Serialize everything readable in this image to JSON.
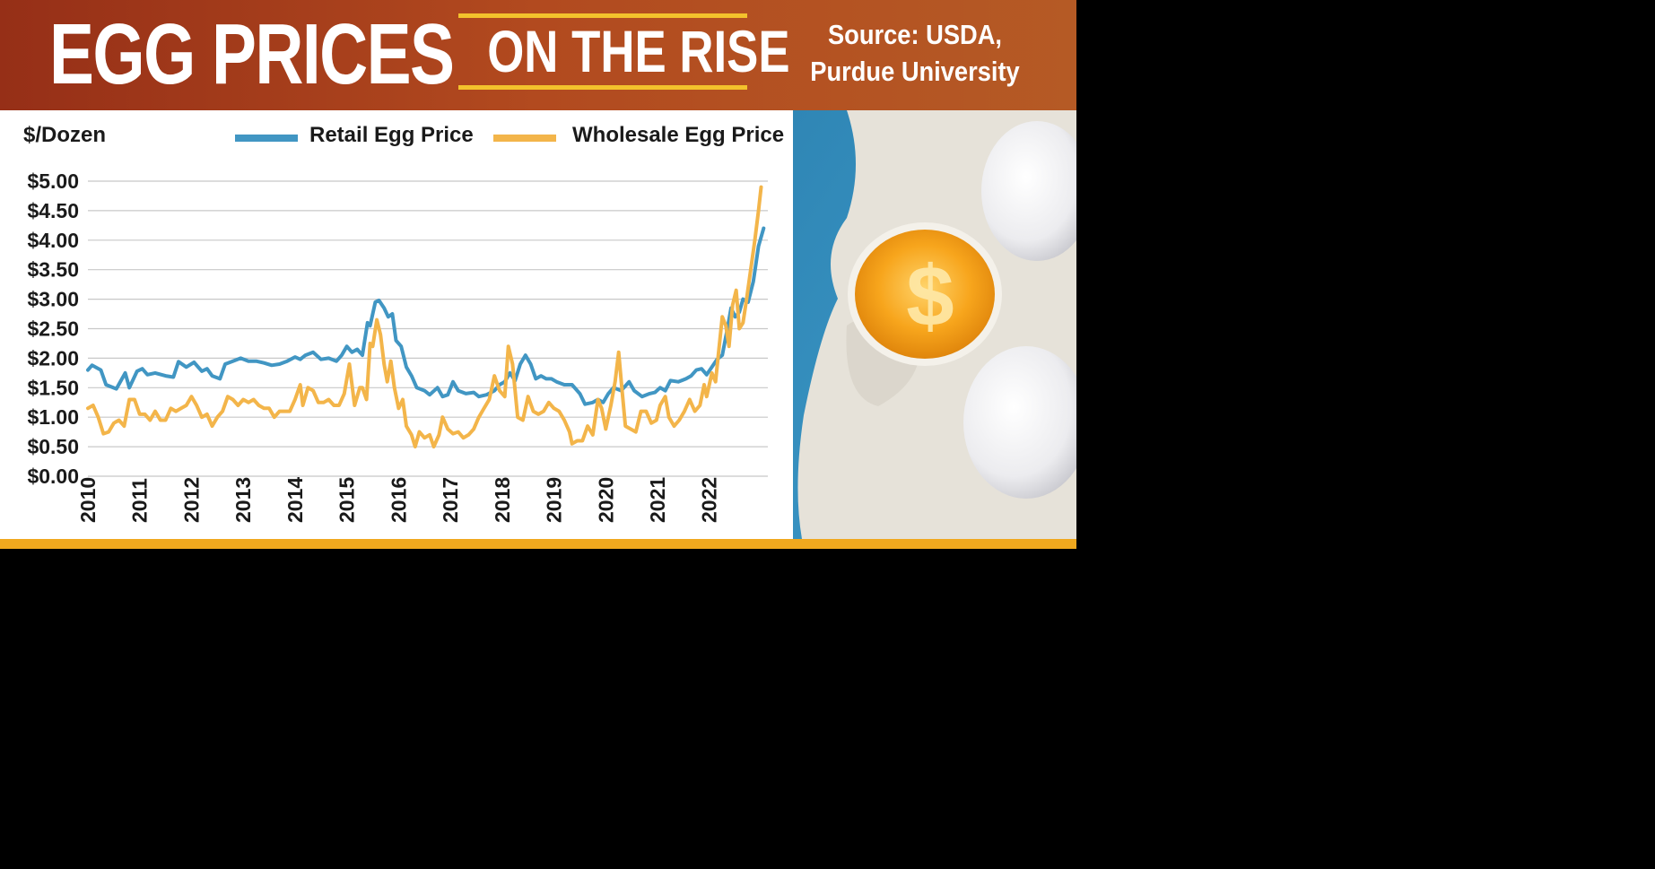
{
  "banner": {
    "title": "EGG PRICES",
    "subtitle": "ON THE RISE",
    "source_line1": "Source: USDA,",
    "source_line2": "Purdue University"
  },
  "colors": {
    "banner_start": "#962f17",
    "banner_end": "#b55a25",
    "accent_yellow": "#f3c22c",
    "bottom_bar": "#f0a81e",
    "retail": "#4196c3",
    "wholesale": "#f3b54a",
    "photo_bg": "#3b90bd"
  },
  "photo": {
    "dollar_sign": "$"
  },
  "chart_data": {
    "type": "line",
    "ylabel": "$/Dozen",
    "ylim": [
      0,
      5
    ],
    "yticks": [
      "$0.00",
      "$0.50",
      "$1.00",
      "$1.50",
      "$2.00",
      "$2.50",
      "$3.00",
      "$3.50",
      "$4.00",
      "$4.50",
      "$5.00"
    ],
    "ytick_values": [
      0,
      0.5,
      1,
      1.5,
      2,
      2.5,
      3,
      3.5,
      4,
      4.5,
      5
    ],
    "xlim": [
      2010,
      2023.2
    ],
    "xticks": [
      "2010",
      "2011",
      "2012",
      "2013",
      "2014",
      "2015",
      "2016",
      "2017",
      "2018",
      "2019",
      "2020",
      "2021",
      "2022"
    ],
    "xtick_values": [
      2010,
      2011,
      2012,
      2013,
      2014,
      2015,
      2016,
      2017,
      2018,
      2019,
      2020,
      2021,
      2022
    ],
    "grid": true,
    "legend_position": "top",
    "series": [
      {
        "name": "Retail Egg Price",
        "color": "#4196c3",
        "points": [
          [
            2010.0,
            1.8
          ],
          [
            2010.08,
            1.88
          ],
          [
            2010.25,
            1.8
          ],
          [
            2010.35,
            1.55
          ],
          [
            2010.55,
            1.48
          ],
          [
            2010.72,
            1.75
          ],
          [
            2010.8,
            1.5
          ],
          [
            2010.95,
            1.78
          ],
          [
            2011.05,
            1.82
          ],
          [
            2011.15,
            1.72
          ],
          [
            2011.3,
            1.75
          ],
          [
            2011.5,
            1.7
          ],
          [
            2011.65,
            1.68
          ],
          [
            2011.75,
            1.94
          ],
          [
            2011.9,
            1.85
          ],
          [
            2012.05,
            1.93
          ],
          [
            2012.2,
            1.78
          ],
          [
            2012.3,
            1.82
          ],
          [
            2012.4,
            1.7
          ],
          [
            2012.55,
            1.65
          ],
          [
            2012.65,
            1.9
          ],
          [
            2012.8,
            1.95
          ],
          [
            2012.95,
            2.0
          ],
          [
            2013.1,
            1.95
          ],
          [
            2013.25,
            1.95
          ],
          [
            2013.4,
            1.92
          ],
          [
            2013.55,
            1.88
          ],
          [
            2013.7,
            1.9
          ],
          [
            2013.85,
            1.95
          ],
          [
            2014.0,
            2.02
          ],
          [
            2014.1,
            1.98
          ],
          [
            2014.2,
            2.05
          ],
          [
            2014.35,
            2.1
          ],
          [
            2014.5,
            1.98
          ],
          [
            2014.65,
            2.0
          ],
          [
            2014.8,
            1.95
          ],
          [
            2014.9,
            2.05
          ],
          [
            2015.0,
            2.2
          ],
          [
            2015.1,
            2.1
          ],
          [
            2015.2,
            2.15
          ],
          [
            2015.3,
            2.05
          ],
          [
            2015.4,
            2.6
          ],
          [
            2015.45,
            2.55
          ],
          [
            2015.55,
            2.95
          ],
          [
            2015.62,
            2.98
          ],
          [
            2015.72,
            2.85
          ],
          [
            2015.8,
            2.7
          ],
          [
            2015.88,
            2.75
          ],
          [
            2015.95,
            2.3
          ],
          [
            2016.05,
            2.2
          ],
          [
            2016.15,
            1.85
          ],
          [
            2016.25,
            1.7
          ],
          [
            2016.35,
            1.5
          ],
          [
            2016.5,
            1.45
          ],
          [
            2016.6,
            1.38
          ],
          [
            2016.75,
            1.5
          ],
          [
            2016.85,
            1.35
          ],
          [
            2016.95,
            1.38
          ],
          [
            2017.05,
            1.6
          ],
          [
            2017.15,
            1.45
          ],
          [
            2017.3,
            1.4
          ],
          [
            2017.45,
            1.42
          ],
          [
            2017.55,
            1.35
          ],
          [
            2017.7,
            1.38
          ],
          [
            2017.85,
            1.45
          ],
          [
            2017.95,
            1.55
          ],
          [
            2018.05,
            1.6
          ],
          [
            2018.15,
            1.75
          ],
          [
            2018.25,
            1.62
          ],
          [
            2018.35,
            1.9
          ],
          [
            2018.45,
            2.05
          ],
          [
            2018.55,
            1.9
          ],
          [
            2018.65,
            1.65
          ],
          [
            2018.75,
            1.7
          ],
          [
            2018.85,
            1.65
          ],
          [
            2018.95,
            1.65
          ],
          [
            2019.05,
            1.6
          ],
          [
            2019.2,
            1.55
          ],
          [
            2019.35,
            1.55
          ],
          [
            2019.5,
            1.4
          ],
          [
            2019.6,
            1.22
          ],
          [
            2019.75,
            1.25
          ],
          [
            2019.85,
            1.3
          ],
          [
            2019.95,
            1.25
          ],
          [
            2020.05,
            1.4
          ],
          [
            2020.15,
            1.5
          ],
          [
            2020.3,
            1.45
          ],
          [
            2020.45,
            1.6
          ],
          [
            2020.55,
            1.45
          ],
          [
            2020.7,
            1.35
          ],
          [
            2020.85,
            1.4
          ],
          [
            2020.95,
            1.42
          ],
          [
            2021.05,
            1.5
          ],
          [
            2021.15,
            1.45
          ],
          [
            2021.25,
            1.62
          ],
          [
            2021.4,
            1.6
          ],
          [
            2021.55,
            1.65
          ],
          [
            2021.65,
            1.7
          ],
          [
            2021.75,
            1.8
          ],
          [
            2021.85,
            1.82
          ],
          [
            2021.95,
            1.72
          ],
          [
            2022.05,
            1.85
          ],
          [
            2022.15,
            1.98
          ],
          [
            2022.25,
            2.05
          ],
          [
            2022.35,
            2.5
          ],
          [
            2022.42,
            2.85
          ],
          [
            2022.5,
            2.7
          ],
          [
            2022.58,
            2.78
          ],
          [
            2022.65,
            3.0
          ],
          [
            2022.75,
            2.95
          ],
          [
            2022.85,
            3.3
          ],
          [
            2022.95,
            3.9
          ],
          [
            2023.05,
            4.2
          ]
        ]
      },
      {
        "name": "Wholesale Egg Price",
        "color": "#f3b54a",
        "points": [
          [
            2010.0,
            1.15
          ],
          [
            2010.1,
            1.2
          ],
          [
            2010.2,
            1.0
          ],
          [
            2010.3,
            0.72
          ],
          [
            2010.4,
            0.75
          ],
          [
            2010.5,
            0.9
          ],
          [
            2010.6,
            0.95
          ],
          [
            2010.7,
            0.85
          ],
          [
            2010.8,
            1.3
          ],
          [
            2010.9,
            1.3
          ],
          [
            2011.0,
            1.05
          ],
          [
            2011.1,
            1.05
          ],
          [
            2011.2,
            0.95
          ],
          [
            2011.3,
            1.1
          ],
          [
            2011.4,
            0.95
          ],
          [
            2011.5,
            0.95
          ],
          [
            2011.6,
            1.15
          ],
          [
            2011.7,
            1.1
          ],
          [
            2011.8,
            1.15
          ],
          [
            2011.9,
            1.2
          ],
          [
            2012.0,
            1.35
          ],
          [
            2012.1,
            1.2
          ],
          [
            2012.2,
            1.0
          ],
          [
            2012.3,
            1.05
          ],
          [
            2012.4,
            0.85
          ],
          [
            2012.5,
            1.0
          ],
          [
            2012.6,
            1.1
          ],
          [
            2012.7,
            1.35
          ],
          [
            2012.8,
            1.3
          ],
          [
            2012.9,
            1.2
          ],
          [
            2013.0,
            1.3
          ],
          [
            2013.1,
            1.25
          ],
          [
            2013.2,
            1.3
          ],
          [
            2013.3,
            1.2
          ],
          [
            2013.4,
            1.15
          ],
          [
            2013.5,
            1.15
          ],
          [
            2013.6,
            1.0
          ],
          [
            2013.7,
            1.1
          ],
          [
            2013.8,
            1.1
          ],
          [
            2013.9,
            1.1
          ],
          [
            2014.0,
            1.3
          ],
          [
            2014.1,
            1.55
          ],
          [
            2014.15,
            1.2
          ],
          [
            2014.25,
            1.5
          ],
          [
            2014.35,
            1.45
          ],
          [
            2014.45,
            1.25
          ],
          [
            2014.55,
            1.25
          ],
          [
            2014.65,
            1.3
          ],
          [
            2014.75,
            1.2
          ],
          [
            2014.85,
            1.2
          ],
          [
            2014.95,
            1.4
          ],
          [
            2015.05,
            1.9
          ],
          [
            2015.15,
            1.2
          ],
          [
            2015.25,
            1.5
          ],
          [
            2015.3,
            1.5
          ],
          [
            2015.38,
            1.3
          ],
          [
            2015.45,
            2.25
          ],
          [
            2015.5,
            2.2
          ],
          [
            2015.58,
            2.65
          ],
          [
            2015.65,
            2.4
          ],
          [
            2015.72,
            1.9
          ],
          [
            2015.78,
            1.6
          ],
          [
            2015.85,
            1.95
          ],
          [
            2015.92,
            1.5
          ],
          [
            2016.0,
            1.15
          ],
          [
            2016.08,
            1.3
          ],
          [
            2016.15,
            0.85
          ],
          [
            2016.25,
            0.7
          ],
          [
            2016.32,
            0.5
          ],
          [
            2016.4,
            0.75
          ],
          [
            2016.5,
            0.65
          ],
          [
            2016.6,
            0.7
          ],
          [
            2016.68,
            0.5
          ],
          [
            2016.78,
            0.7
          ],
          [
            2016.85,
            1.0
          ],
          [
            2016.95,
            0.8
          ],
          [
            2017.05,
            0.72
          ],
          [
            2017.15,
            0.75
          ],
          [
            2017.25,
            0.65
          ],
          [
            2017.35,
            0.7
          ],
          [
            2017.45,
            0.8
          ],
          [
            2017.55,
            1.0
          ],
          [
            2017.65,
            1.15
          ],
          [
            2017.75,
            1.3
          ],
          [
            2017.85,
            1.7
          ],
          [
            2017.95,
            1.45
          ],
          [
            2018.05,
            1.35
          ],
          [
            2018.12,
            2.2
          ],
          [
            2018.2,
            1.9
          ],
          [
            2018.3,
            1.0
          ],
          [
            2018.4,
            0.95
          ],
          [
            2018.5,
            1.35
          ],
          [
            2018.6,
            1.1
          ],
          [
            2018.7,
            1.05
          ],
          [
            2018.8,
            1.1
          ],
          [
            2018.9,
            1.25
          ],
          [
            2019.0,
            1.15
          ],
          [
            2019.1,
            1.1
          ],
          [
            2019.2,
            0.95
          ],
          [
            2019.3,
            0.75
          ],
          [
            2019.35,
            0.55
          ],
          [
            2019.45,
            0.6
          ],
          [
            2019.55,
            0.6
          ],
          [
            2019.65,
            0.85
          ],
          [
            2019.75,
            0.7
          ],
          [
            2019.85,
            1.3
          ],
          [
            2019.92,
            1.15
          ],
          [
            2020.0,
            0.8
          ],
          [
            2020.1,
            1.2
          ],
          [
            2020.18,
            1.6
          ],
          [
            2020.25,
            2.1
          ],
          [
            2020.3,
            1.6
          ],
          [
            2020.38,
            0.85
          ],
          [
            2020.48,
            0.8
          ],
          [
            2020.58,
            0.75
          ],
          [
            2020.68,
            1.1
          ],
          [
            2020.78,
            1.1
          ],
          [
            2020.88,
            0.9
          ],
          [
            2020.98,
            0.95
          ],
          [
            2021.05,
            1.2
          ],
          [
            2021.15,
            1.35
          ],
          [
            2021.22,
            1.0
          ],
          [
            2021.32,
            0.85
          ],
          [
            2021.42,
            0.95
          ],
          [
            2021.52,
            1.1
          ],
          [
            2021.62,
            1.3
          ],
          [
            2021.72,
            1.1
          ],
          [
            2021.82,
            1.2
          ],
          [
            2021.9,
            1.55
          ],
          [
            2021.95,
            1.35
          ],
          [
            2022.05,
            1.75
          ],
          [
            2022.12,
            1.6
          ],
          [
            2022.18,
            2.1
          ],
          [
            2022.25,
            2.7
          ],
          [
            2022.32,
            2.55
          ],
          [
            2022.38,
            2.2
          ],
          [
            2022.45,
            2.9
          ],
          [
            2022.52,
            3.15
          ],
          [
            2022.58,
            2.5
          ],
          [
            2022.65,
            2.6
          ],
          [
            2022.72,
            3.0
          ],
          [
            2022.8,
            3.5
          ],
          [
            2022.88,
            4.0
          ],
          [
            2022.95,
            4.5
          ],
          [
            2023.0,
            4.9
          ]
        ]
      }
    ]
  }
}
